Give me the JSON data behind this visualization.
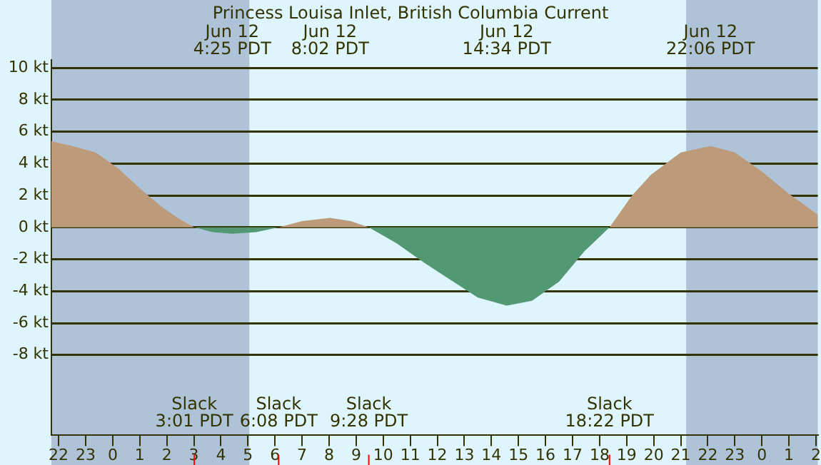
{
  "chart_data": {
    "type": "area",
    "title": "Princess Louisa Inlet, British Columbia Current",
    "series": [
      {
        "color": "#bc9a7a",
        "x": [
          "--06-11T21:44",
          "--06-11T22:30",
          "--06-11T23:22",
          "--06-12T00:12",
          "--06-12T01:02",
          "--06-12T01:48",
          "--06-12T02:24",
          "--06-12T03:01",
          "--06-12T04:30",
          "--06-12T06:08",
          "--06-12T07:00",
          "--06-12T08:02",
          "--06-12T08:48",
          "--06-12T09:28",
          "--06-12T14:00",
          "--06-12T18:22",
          "--06-12T19:12",
          "--06-12T19:54",
          "--06-12T21:00",
          "--06-12T22:06",
          "--06-12T23:00",
          "--06-13T00:00",
          "--06-13T01:00",
          "--06-13T02:04"
        ],
        "values": [
          5.4,
          5.1,
          4.7,
          3.7,
          2.4,
          1.3,
          0.6,
          0,
          null,
          0,
          0.4,
          0.6,
          0.4,
          0,
          null,
          0,
          2.0,
          3.3,
          4.7,
          5.1,
          4.7,
          3.5,
          2.1,
          0.8
        ]
      },
      {
        "color": "#529872",
        "x": [
          "--06-12T03:01",
          "--06-12T03:42",
          "--06-12T04:25",
          "--06-12T05:18",
          "--06-12T06:08",
          "--06-12T08:00",
          "--06-12T09:28",
          "--06-12T10:30",
          "--06-12T11:30",
          "--06-12T12:30",
          "--06-12T13:30",
          "--06-12T14:34",
          "--06-12T15:30",
          "--06-12T16:30",
          "--06-12T17:26",
          "--06-12T18:22"
        ],
        "values": [
          0,
          -0.3,
          -0.4,
          -0.3,
          0,
          null,
          0,
          -1.0,
          -2.2,
          -3.3,
          -4.4,
          -4.9,
          -4.6,
          -3.4,
          -1.5,
          0
        ]
      }
    ],
    "xlim": [
      "--06-11T21:44",
      "--06-13T02:04"
    ],
    "xticks": [
      {
        "value": "--06-11T22:00",
        "label": "22"
      },
      {
        "value": "--06-11T23:00",
        "label": "23"
      },
      {
        "value": "--06-12T00:00",
        "label": "0"
      },
      {
        "value": "--06-12T01:00",
        "label": "1"
      },
      {
        "value": "--06-12T02:00",
        "label": "2"
      },
      {
        "value": "--06-12T03:00",
        "label": "3"
      },
      {
        "value": "--06-12T04:00",
        "label": "4"
      },
      {
        "value": "--06-12T05:00",
        "label": "5"
      },
      {
        "value": "--06-12T06:00",
        "label": "6"
      },
      {
        "value": "--06-12T07:00",
        "label": "7"
      },
      {
        "value": "--06-12T08:00",
        "label": "8"
      },
      {
        "value": "--06-12T09:00",
        "label": "9"
      },
      {
        "value": "--06-12T10:00",
        "label": "10"
      },
      {
        "value": "--06-12T11:00",
        "label": "11"
      },
      {
        "value": "--06-12T12:00",
        "label": "12"
      },
      {
        "value": "--06-12T13:00",
        "label": "13"
      },
      {
        "value": "--06-12T14:00",
        "label": "14"
      },
      {
        "value": "--06-12T15:00",
        "label": "15"
      },
      {
        "value": "--06-12T16:00",
        "label": "16"
      },
      {
        "value": "--06-12T17:00",
        "label": "17"
      },
      {
        "value": "--06-12T18:00",
        "label": "18"
      },
      {
        "value": "--06-12T19:00",
        "label": "19"
      },
      {
        "value": "--06-12T20:00",
        "label": "20"
      },
      {
        "value": "--06-12T21:00",
        "label": "21"
      },
      {
        "value": "--06-12T22:00",
        "label": "22"
      },
      {
        "value": "--06-12T23:00",
        "label": "23"
      },
      {
        "value": "--06-13T00:00",
        "label": "0"
      },
      {
        "value": "--06-13T01:00",
        "label": "1"
      },
      {
        "value": "--06-13T02:00",
        "label": "2"
      }
    ],
    "ylim": [
      -13,
      10.5
    ],
    "yticks": [
      {
        "value": -8,
        "label": "-8 kt"
      },
      {
        "value": -6,
        "label": "-6 kt"
      },
      {
        "value": -4,
        "label": "-4 kt"
      },
      {
        "value": -2,
        "label": "-2 kt"
      },
      {
        "value": 0,
        "label": "0 kt"
      },
      {
        "value": 2,
        "label": "2 kt"
      },
      {
        "value": 4,
        "label": "4 kt"
      },
      {
        "value": 6,
        "label": "6 kt"
      },
      {
        "value": 8,
        "label": "8 kt"
      },
      {
        "value": 10,
        "label": "10 kt"
      }
    ],
    "grid": "y",
    "legend": false,
    "bands": [
      {
        "axis": "x",
        "from": "--06-11T21:44",
        "to": "--06-12T05:03",
        "color": "#afc3d8"
      },
      {
        "axis": "x",
        "from": "--06-12T21:12",
        "to": "--06-13T02:04",
        "color": "#afc3d8"
      }
    ],
    "annotations": [
      "Jun 12\n4:25 PDT",
      "Jun 12\n8:02 PDT",
      "Jun 12\n14:34 PDT",
      "Jun 12\n22:06 PDT",
      "Slack\n3:01 PDT",
      "Slack\n6:08 PDT",
      "Slack\n9:28 PDT",
      "Slack\n18:22 PDT"
    ]
  }
}
